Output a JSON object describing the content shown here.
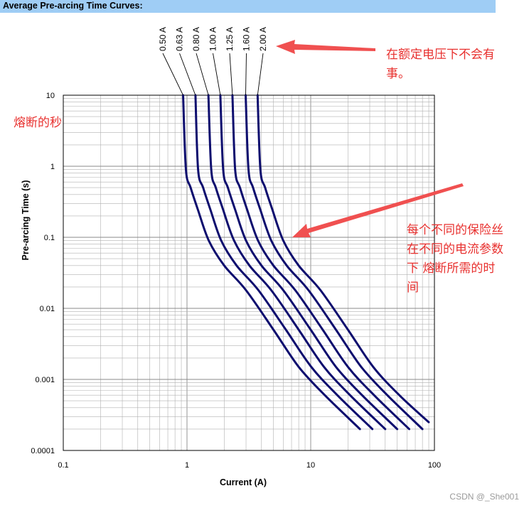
{
  "header": {
    "title": "Average Pre-arcing Time Curves:"
  },
  "annotations": {
    "top_right": "在额定电压下不会有事。",
    "top_right_lines": [
      "在额定电压下不会有",
      "事。"
    ],
    "left": "熔断的秒",
    "right": "每个不同的保险丝在不同的电流参数下 熔断所需的时间",
    "right_lines": [
      "每个不同的保险丝",
      "在不同的电流参数",
      "下 熔断所需的时",
      "间"
    ]
  },
  "watermark": "CSDN @_She001",
  "colors": {
    "header_bg": "#9fcdf5",
    "curve": "#0d0d6e",
    "annotation": "#e8312f",
    "arrow": "#f05050",
    "grid": "#b0b0b0"
  },
  "chart_data": {
    "type": "line",
    "title": "Average Pre-arcing Time Curves:",
    "xlabel": "Current (A)",
    "ylabel": "Pre-arcing Time (s)",
    "x_scale": "log",
    "y_scale": "log",
    "xlim": [
      0.1,
      100
    ],
    "ylim": [
      0.0001,
      10
    ],
    "x_ticks": [
      "0.1",
      "1",
      "10",
      "100"
    ],
    "y_ticks": [
      "10",
      "1",
      "0.1",
      "0.01",
      "0.001",
      "0.0001"
    ],
    "grid": true,
    "legend": "curve labels at top",
    "series": [
      {
        "name": "0.50 A",
        "points": [
          [
            0.93,
            10
          ],
          [
            0.98,
            0.9
          ],
          [
            1.07,
            0.5
          ],
          [
            1.22,
            0.25
          ],
          [
            1.5,
            0.09
          ],
          [
            2.0,
            0.04
          ],
          [
            3.0,
            0.018
          ],
          [
            5.0,
            0.005
          ],
          [
            8.0,
            0.0015
          ],
          [
            13.0,
            0.0006
          ],
          [
            25.0,
            0.0002
          ]
        ]
      },
      {
        "name": "0.63 A",
        "points": [
          [
            1.17,
            10
          ],
          [
            1.23,
            0.9
          ],
          [
            1.35,
            0.5
          ],
          [
            1.54,
            0.25
          ],
          [
            1.89,
            0.09
          ],
          [
            2.52,
            0.04
          ],
          [
            3.78,
            0.018
          ],
          [
            6.3,
            0.005
          ],
          [
            10.1,
            0.0015
          ],
          [
            16.4,
            0.0006
          ],
          [
            31.5,
            0.0002
          ]
        ]
      },
      {
        "name": "0.80 A",
        "points": [
          [
            1.49,
            10
          ],
          [
            1.57,
            0.9
          ],
          [
            1.71,
            0.5
          ],
          [
            1.95,
            0.25
          ],
          [
            2.4,
            0.09
          ],
          [
            3.2,
            0.04
          ],
          [
            4.8,
            0.018
          ],
          [
            8.0,
            0.005
          ],
          [
            12.8,
            0.0015
          ],
          [
            20.8,
            0.0006
          ],
          [
            40.0,
            0.0002
          ]
        ]
      },
      {
        "name": "1.00 A",
        "points": [
          [
            1.86,
            10
          ],
          [
            1.96,
            0.9
          ],
          [
            2.14,
            0.5
          ],
          [
            2.44,
            0.25
          ],
          [
            3.0,
            0.09
          ],
          [
            4.0,
            0.04
          ],
          [
            6.0,
            0.018
          ],
          [
            10.0,
            0.005
          ],
          [
            16.0,
            0.0015
          ],
          [
            26.0,
            0.0006
          ],
          [
            50.0,
            0.0002
          ]
        ]
      },
      {
        "name": "1.25 A",
        "points": [
          [
            2.33,
            10
          ],
          [
            2.45,
            0.9
          ],
          [
            2.68,
            0.5
          ],
          [
            3.05,
            0.25
          ],
          [
            3.75,
            0.09
          ],
          [
            5.0,
            0.04
          ],
          [
            7.5,
            0.018
          ],
          [
            12.5,
            0.005
          ],
          [
            20.0,
            0.0015
          ],
          [
            32.5,
            0.0006
          ],
          [
            62.5,
            0.0002
          ]
        ]
      },
      {
        "name": "1.60 A",
        "points": [
          [
            2.98,
            10
          ],
          [
            3.14,
            0.9
          ],
          [
            3.42,
            0.5
          ],
          [
            3.9,
            0.25
          ],
          [
            4.8,
            0.09
          ],
          [
            6.4,
            0.04
          ],
          [
            9.6,
            0.018
          ],
          [
            16.0,
            0.005
          ],
          [
            25.6,
            0.0015
          ],
          [
            41.6,
            0.0006
          ],
          [
            80.0,
            0.0002
          ]
        ]
      },
      {
        "name": "2.00 A",
        "points": [
          [
            3.72,
            10
          ],
          [
            3.92,
            0.9
          ],
          [
            4.28,
            0.5
          ],
          [
            4.88,
            0.25
          ],
          [
            6.0,
            0.09
          ],
          [
            8.0,
            0.04
          ],
          [
            12.0,
            0.018
          ],
          [
            20.0,
            0.005
          ],
          [
            32.0,
            0.0015
          ],
          [
            52.0,
            0.0006
          ],
          [
            90.0,
            0.00025
          ]
        ]
      }
    ]
  }
}
